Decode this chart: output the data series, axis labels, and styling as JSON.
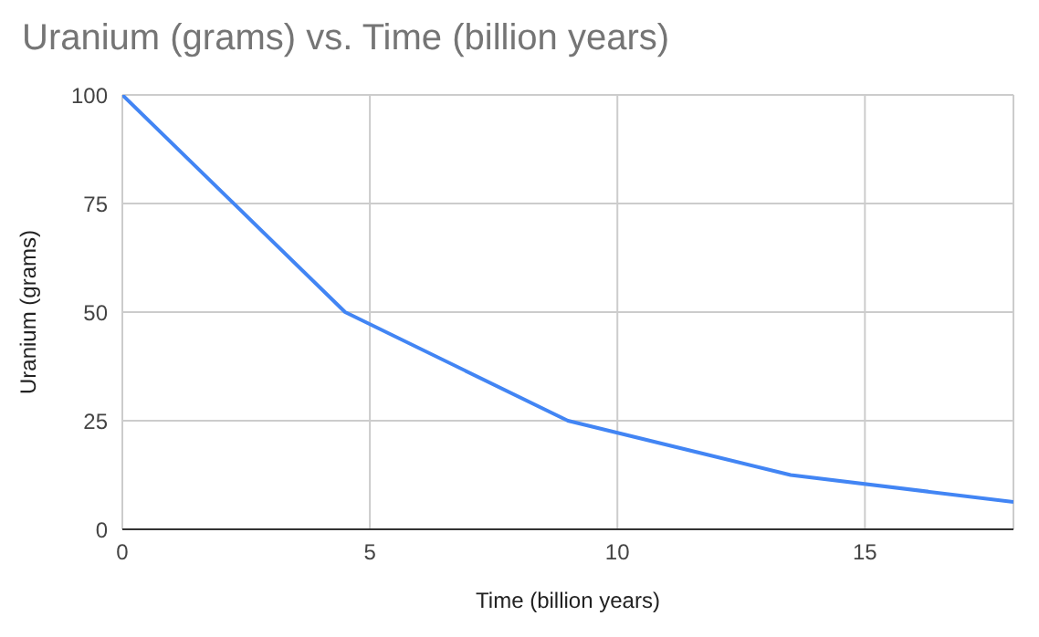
{
  "chart_data": {
    "type": "line",
    "title": "Uranium (grams) vs. Time (billion years)",
    "xlabel": "Time (billion years)",
    "ylabel": "Uranium (grams)",
    "x": [
      0,
      4.5,
      9,
      13.5,
      18
    ],
    "series": [
      {
        "color": "#4285f4",
        "values": [
          100,
          50,
          25,
          12.5,
          6.3
        ]
      }
    ],
    "xlim": [
      0,
      18
    ],
    "xticks": [
      0,
      5,
      10,
      15
    ],
    "ylim": [
      0,
      100
    ],
    "yticks": [
      0,
      25,
      50,
      75,
      100
    ],
    "grid": true,
    "legend": false,
    "marker": "none",
    "line_style": "solid"
  }
}
